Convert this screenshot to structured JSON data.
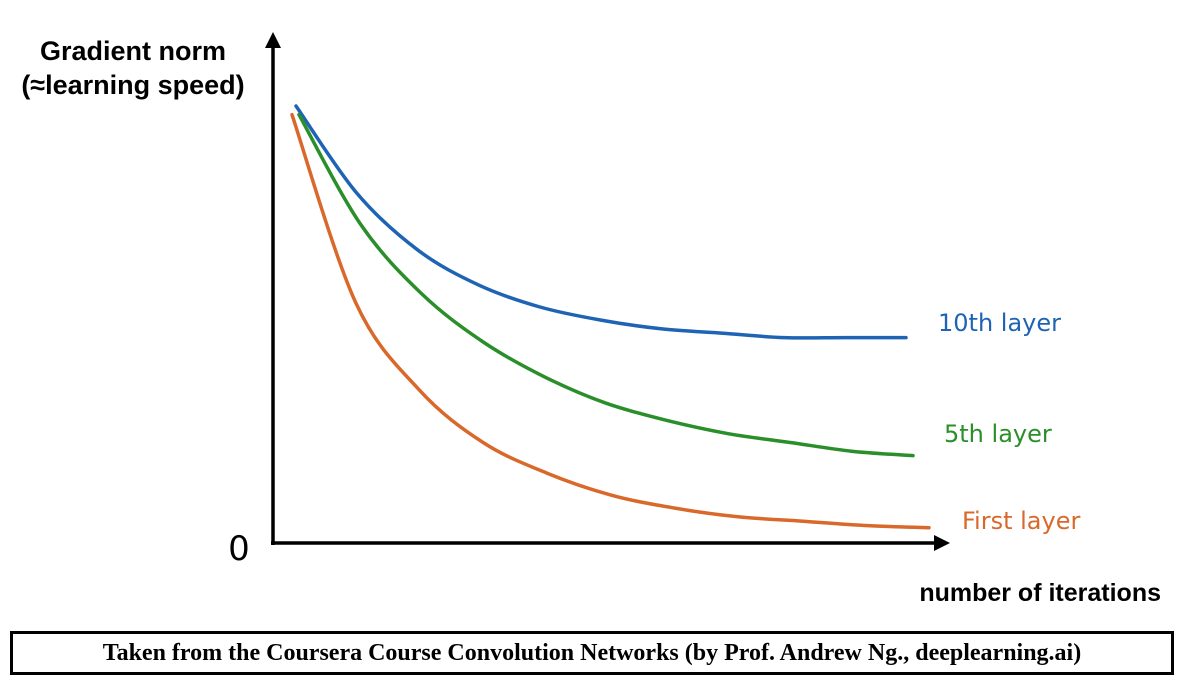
{
  "chart_data": {
    "type": "line",
    "ylabel_line1": "Gradient norm",
    "ylabel_line2": "(≈learning speed)",
    "xlabel": "number of iterations",
    "y_tick_zero": "0",
    "series": [
      {
        "name": "10th layer",
        "color": "#1f64b4",
        "x": [
          0,
          0.1,
          0.2,
          0.3,
          0.4,
          0.5,
          0.6,
          0.7,
          0.8,
          0.9,
          1.0
        ],
        "y": [
          1.0,
          0.8,
          0.67,
          0.59,
          0.54,
          0.51,
          0.49,
          0.48,
          0.47,
          0.47,
          0.47
        ]
      },
      {
        "name": "5th layer",
        "color": "#2a8f2a",
        "x": [
          0,
          0.1,
          0.2,
          0.3,
          0.4,
          0.5,
          0.6,
          0.7,
          0.8,
          0.9,
          1.0
        ],
        "y": [
          0.98,
          0.73,
          0.57,
          0.46,
          0.38,
          0.32,
          0.28,
          0.25,
          0.23,
          0.21,
          0.2
        ]
      },
      {
        "name": "First layer",
        "color": "#d9692b",
        "x": [
          0,
          0.1,
          0.2,
          0.3,
          0.4,
          0.5,
          0.6,
          0.7,
          0.8,
          0.9,
          1.0
        ],
        "y": [
          0.98,
          0.55,
          0.35,
          0.23,
          0.16,
          0.11,
          0.08,
          0.06,
          0.05,
          0.04,
          0.035
        ]
      }
    ],
    "xlim": [
      0,
      1.0
    ],
    "ylim": [
      0,
      1.0
    ],
    "grid": false,
    "legend": "labels at line ends"
  },
  "caption": "Taken from the Coursera Course Convolution Networks (by Prof. Andrew Ng., deeplearning.ai)"
}
